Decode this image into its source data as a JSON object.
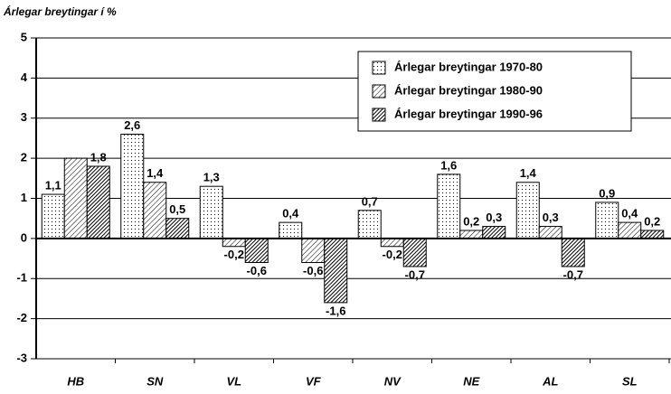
{
  "chart_data": {
    "type": "bar",
    "title": "Árlegar breytingar í %",
    "categories": [
      "HB",
      "SN",
      "VL",
      "VF",
      "NV",
      "NE",
      "AL",
      "SL"
    ],
    "series": [
      {
        "name": "Árlegar breytingar 1970-80",
        "color": "#ffffff",
        "pattern": "dots",
        "values": [
          1.1,
          2.6,
          1.3,
          0.4,
          0.7,
          1.6,
          1.4,
          0.9
        ],
        "value_labels": [
          "1,1",
          "2,6",
          "1,3",
          "0,4",
          "0,7",
          "1,6",
          "1,4",
          "0,9"
        ]
      },
      {
        "name": "Árlegar breytingar 1980-90",
        "color": "#ffffff",
        "pattern": "light-hatch",
        "values": [
          2.0,
          1.4,
          -0.2,
          -0.6,
          -0.2,
          0.2,
          0.3,
          0.4
        ],
        "value_labels": [
          null,
          "1,4",
          "-0,2",
          "-0,6",
          "-0,2",
          "0,2",
          "0,3",
          "0,4"
        ]
      },
      {
        "name": "Árlegar breytingar 1990-96",
        "color": "#333333",
        "pattern": "dark-hatch",
        "values": [
          1.8,
          0.5,
          -0.6,
          -1.6,
          -0.7,
          0.3,
          -0.7,
          0.2
        ],
        "value_labels": [
          "1,8",
          "0,5",
          "-0,6",
          "-1,6",
          "-0,7",
          "0,3",
          "-0,7",
          "0,2"
        ]
      }
    ],
    "ylim": [
      -3,
      5
    ],
    "yticks": [
      -3,
      -2,
      -1,
      0,
      1,
      2,
      3,
      4,
      5
    ],
    "grid": true,
    "legend": "upper right"
  }
}
